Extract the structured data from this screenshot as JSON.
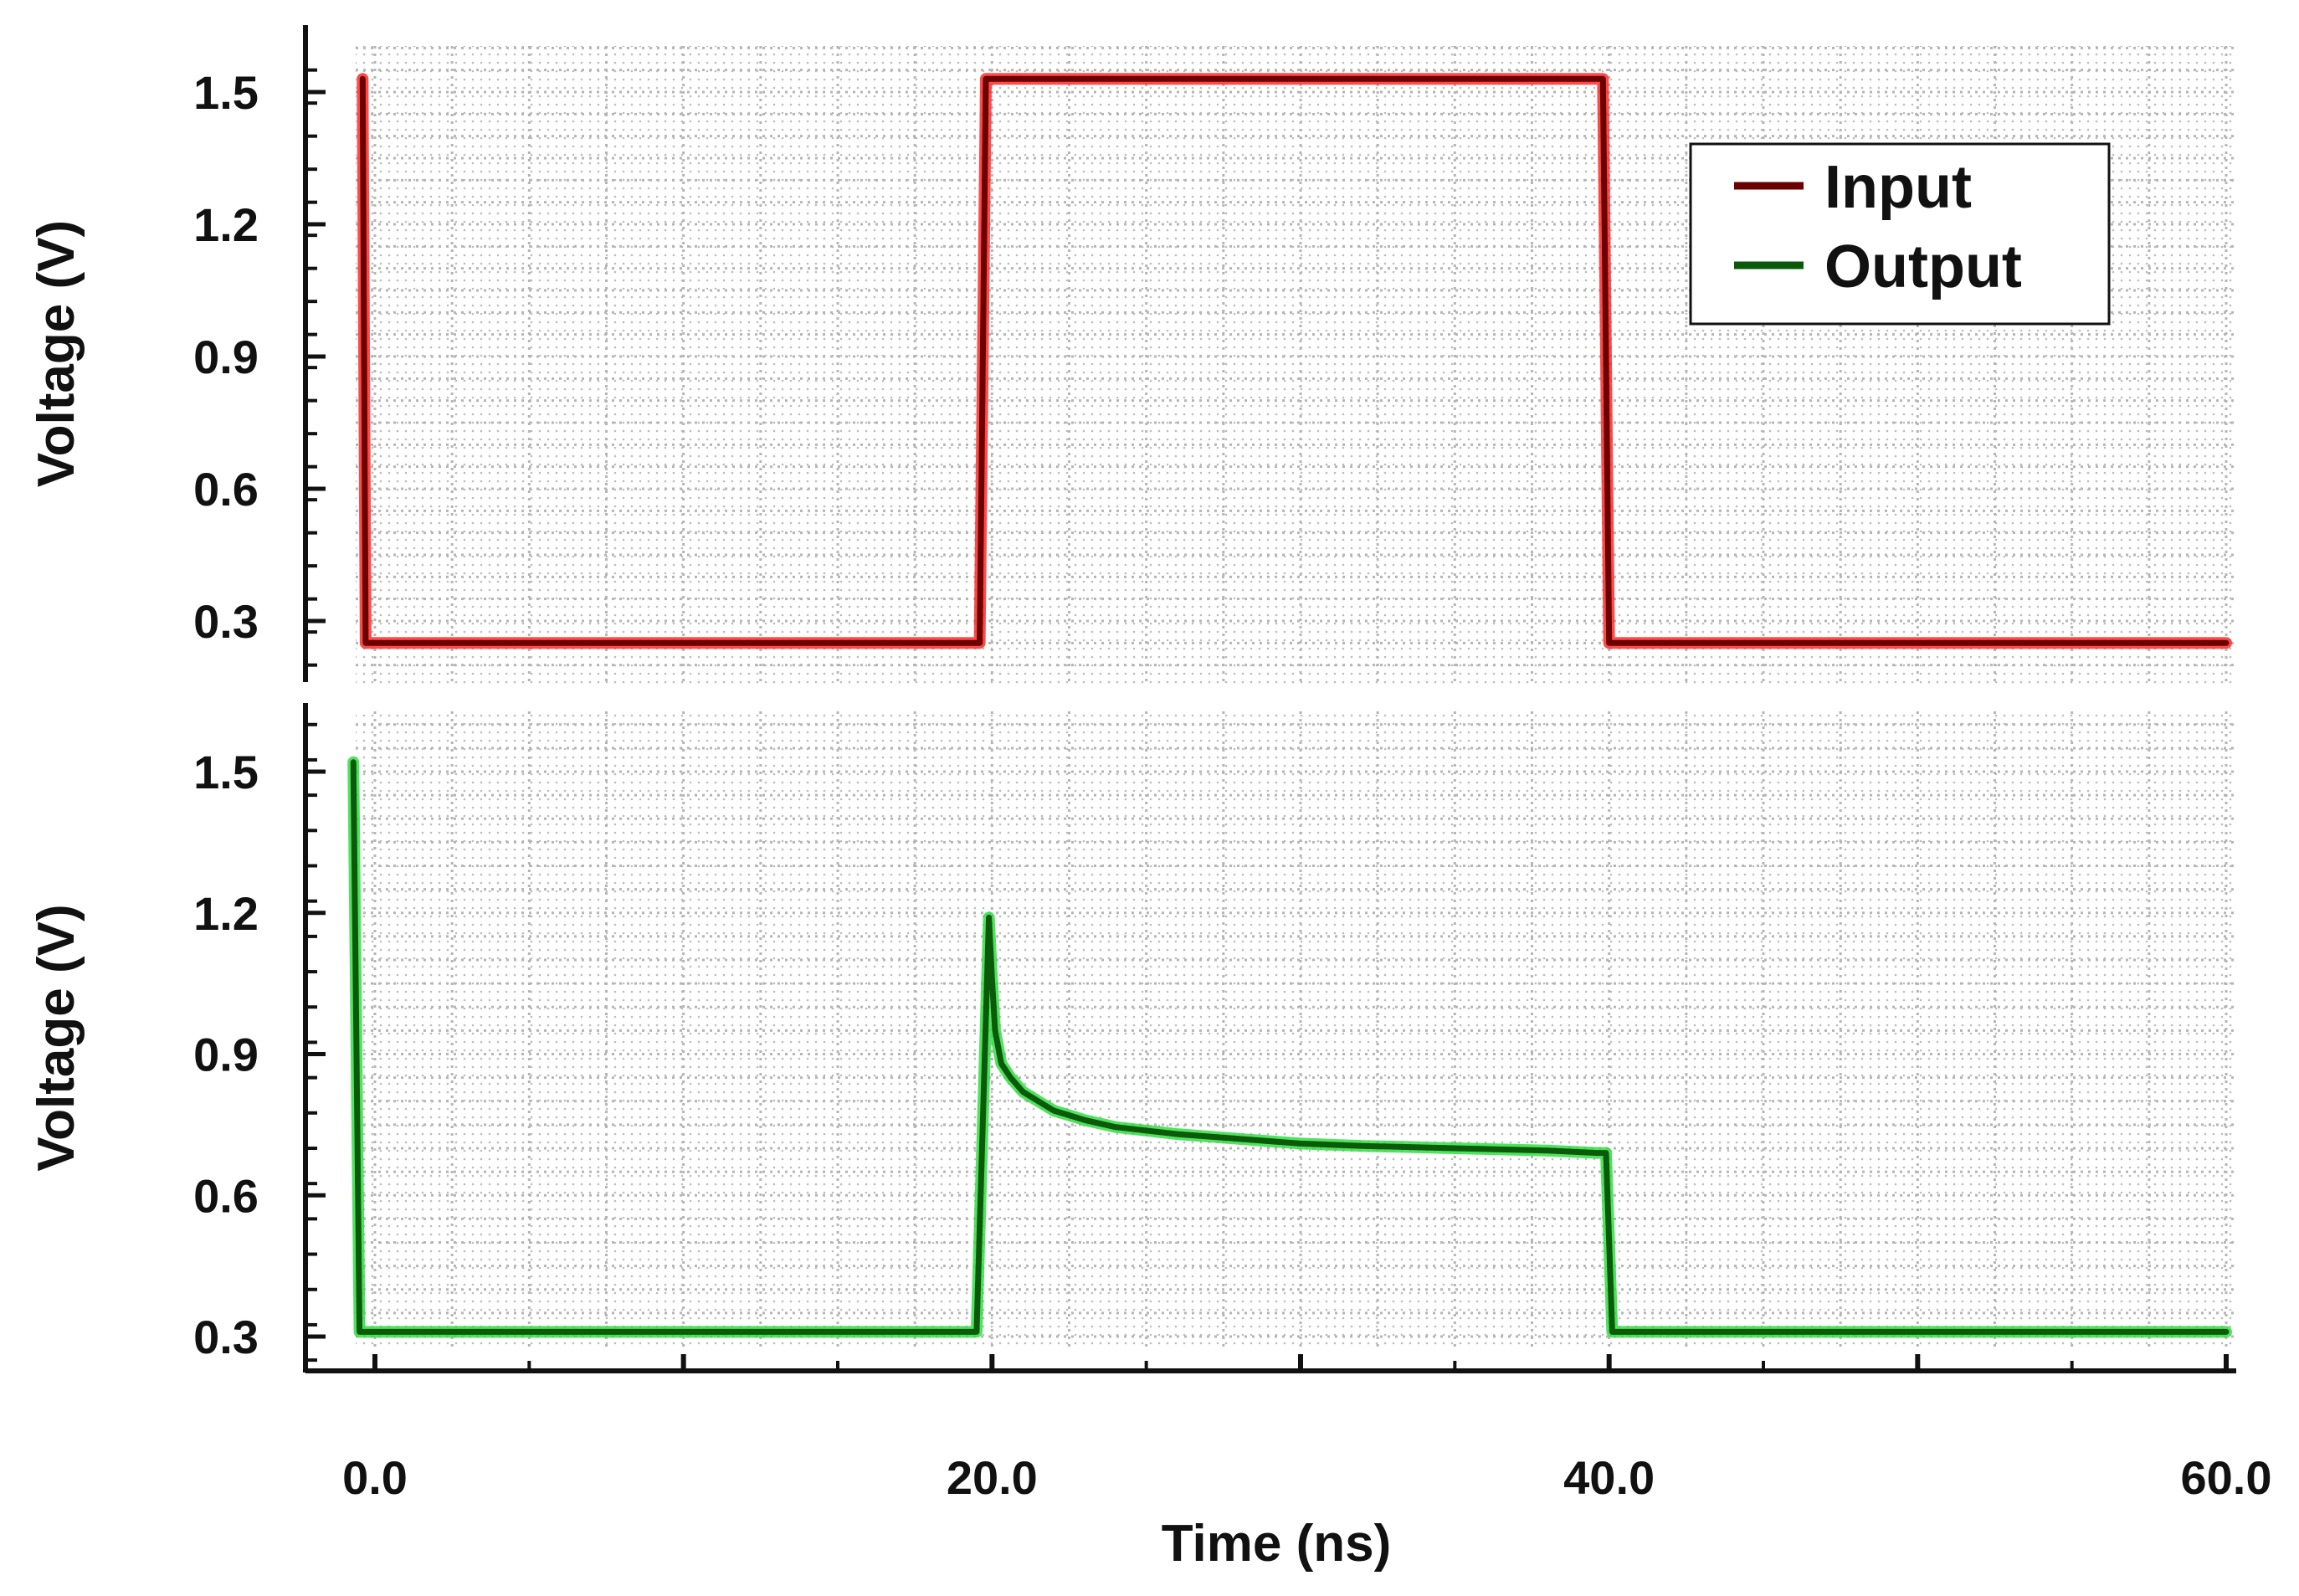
{
  "chart_data": {
    "type": "line",
    "shared_x_axis": {
      "xlabel": "Time (ns)",
      "xlim": [
        0,
        60
      ],
      "ticks": [
        0,
        20,
        40,
        60
      ],
      "tick_labels": [
        "0.0",
        "20.0",
        "40.0",
        "60.0"
      ]
    },
    "panels": [
      {
        "ylabel": "Voltage (V)",
        "ylim": [
          0.2,
          1.6
        ],
        "yticks": [
          0.3,
          0.6,
          0.9,
          1.2,
          1.5
        ],
        "ytick_labels": [
          "0.3",
          "0.6",
          "0.9",
          "1.2",
          "1.5"
        ],
        "grid": true,
        "series": [
          {
            "name": "Input",
            "color": "#6b0000",
            "glow": "#ff2a2a",
            "x": [
              -0.4,
              -0.3,
              0.0,
              19.6,
              19.8,
              39.8,
              40.0,
              60.0
            ],
            "y": [
              1.53,
              0.25,
              0.25,
              0.25,
              1.53,
              1.53,
              0.25,
              0.25
            ]
          }
        ]
      },
      {
        "ylabel": "Voltage (V)",
        "ylim": [
          0.25,
          1.6
        ],
        "yticks": [
          0.3,
          0.6,
          0.9,
          1.2,
          1.5
        ],
        "ytick_labels": [
          "0.3",
          "0.6",
          "0.9",
          "1.2",
          "1.5"
        ],
        "grid": true,
        "series": [
          {
            "name": "Output",
            "color": "#0a5a0a",
            "glow": "#33dd44",
            "x": [
              -0.7,
              -0.5,
              0.0,
              19.5,
              19.9,
              20.0,
              20.1,
              20.3,
              20.6,
              21.0,
              21.5,
              22.0,
              23.0,
              24.0,
              26.0,
              28.0,
              30.0,
              32.0,
              35.0,
              38.0,
              39.6,
              39.9,
              40.1,
              60.0
            ],
            "y": [
              1.52,
              0.31,
              0.31,
              0.31,
              1.19,
              1.06,
              0.95,
              0.88,
              0.85,
              0.82,
              0.8,
              0.78,
              0.76,
              0.745,
              0.73,
              0.72,
              0.71,
              0.705,
              0.7,
              0.695,
              0.69,
              0.69,
              0.31,
              0.31
            ]
          }
        ]
      }
    ],
    "legend": {
      "placement": "top-right of upper panel",
      "entries": [
        {
          "label": "Input",
          "color": "#6b0000"
        },
        {
          "label": "Output",
          "color": "#0a5a0a"
        }
      ]
    }
  }
}
